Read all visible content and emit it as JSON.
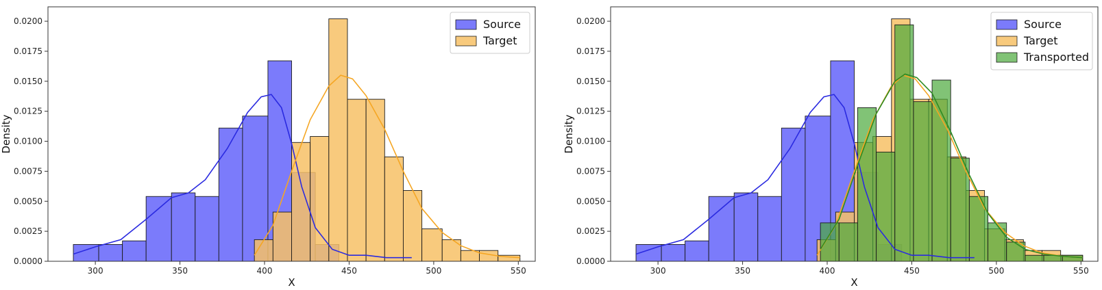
{
  "chart_data": [
    {
      "type": "histogram",
      "xlabel": "X",
      "ylabel": "Density",
      "xlim": [
        272,
        560
      ],
      "ylim": [
        0,
        0.0212
      ],
      "xticks": [
        300,
        350,
        400,
        450,
        500,
        550
      ],
      "yticks": [
        0.0,
        0.0025,
        0.005,
        0.0075,
        0.01,
        0.0125,
        0.015,
        0.0175,
        0.02
      ],
      "ytick_labels": [
        "0.0000",
        "0.0025",
        "0.0050",
        "0.0075",
        "0.0100",
        "0.0125",
        "0.0150",
        "0.0175",
        "0.0200"
      ],
      "legend": {
        "placement": "top-right",
        "entries": [
          "Source",
          "Target"
        ]
      },
      "series": [
        {
          "name": "Source",
          "color": "#7b7bfb",
          "kde_color": "#2a2ae0",
          "alpha": 1,
          "bin_edges": [
            287,
            302,
            316,
            330,
            345,
            359,
            373,
            387,
            402,
            416,
            430,
            444,
            459,
            473,
            487
          ],
          "values": [
            0.0014,
            0.0014,
            0.0017,
            0.0054,
            0.0057,
            0.0054,
            0.0111,
            0.0121,
            0.0167,
            0.0074,
            0.0014,
            0.0,
            0.0,
            0.0
          ],
          "kde": [
            [
              287,
              0.0006
            ],
            [
              300,
              0.0012
            ],
            [
              315,
              0.0018
            ],
            [
              330,
              0.0035
            ],
            [
              345,
              0.0053
            ],
            [
              355,
              0.0057
            ],
            [
              365,
              0.0068
            ],
            [
              378,
              0.0094
            ],
            [
              390,
              0.0124
            ],
            [
              398,
              0.0137
            ],
            [
              404,
              0.0139
            ],
            [
              410,
              0.0128
            ],
            [
              416,
              0.0098
            ],
            [
              422,
              0.0062
            ],
            [
              430,
              0.0028
            ],
            [
              440,
              0.001
            ],
            [
              450,
              0.0005
            ],
            [
              460,
              0.0005
            ],
            [
              472,
              0.0003
            ],
            [
              487,
              0.0003
            ]
          ]
        },
        {
          "name": "Target",
          "color": "#f7c166",
          "kde_color": "#f5a623",
          "alpha": 0.85,
          "bin_edges": [
            394,
            405,
            416,
            427,
            438,
            449,
            460,
            471,
            482,
            493,
            505,
            516,
            527,
            538,
            551
          ],
          "values": [
            0.0018,
            0.0041,
            0.0099,
            0.0104,
            0.0202,
            0.0135,
            0.0135,
            0.0087,
            0.0059,
            0.0027,
            0.0018,
            0.0009,
            0.0009,
            0.0005
          ],
          "kde": [
            [
              394,
              0.0005
            ],
            [
              405,
              0.003
            ],
            [
              416,
              0.0075
            ],
            [
              427,
              0.0118
            ],
            [
              438,
              0.0146
            ],
            [
              445,
              0.0155
            ],
            [
              452,
              0.0152
            ],
            [
              460,
              0.0138
            ],
            [
              471,
              0.011
            ],
            [
              482,
              0.0075
            ],
            [
              493,
              0.0044
            ],
            [
              505,
              0.0024
            ],
            [
              516,
              0.0013
            ],
            [
              527,
              0.0007
            ],
            [
              540,
              0.0004
            ],
            [
              551,
              0.0003
            ]
          ]
        }
      ]
    },
    {
      "type": "histogram",
      "xlabel": "X",
      "ylabel": "Density",
      "xlim": [
        272,
        560
      ],
      "ylim": [
        0,
        0.0212
      ],
      "xticks": [
        300,
        350,
        400,
        450,
        500,
        550
      ],
      "yticks": [
        0.0,
        0.0025,
        0.005,
        0.0075,
        0.01,
        0.0125,
        0.015,
        0.0175,
        0.02
      ],
      "ytick_labels": [
        "0.0000",
        "0.0025",
        "0.0050",
        "0.0075",
        "0.0100",
        "0.0125",
        "0.0150",
        "0.0175",
        "0.0200"
      ],
      "legend": {
        "placement": "top-right",
        "entries": [
          "Source",
          "Target",
          "Transported"
        ]
      },
      "series": [
        {
          "name": "Source",
          "color": "#7b7bfb",
          "kde_color": "#2a2ae0",
          "alpha": 1,
          "bin_edges": [
            287,
            302,
            316,
            330,
            345,
            359,
            373,
            387,
            402,
            416,
            430,
            444,
            459,
            473,
            487
          ],
          "values": [
            0.0014,
            0.0014,
            0.0017,
            0.0054,
            0.0057,
            0.0054,
            0.0111,
            0.0121,
            0.0167,
            0.0074,
            0.0014,
            0.0,
            0.0,
            0.0
          ],
          "kde": [
            [
              287,
              0.0006
            ],
            [
              300,
              0.0012
            ],
            [
              315,
              0.0018
            ],
            [
              330,
              0.0035
            ],
            [
              345,
              0.0053
            ],
            [
              355,
              0.0057
            ],
            [
              365,
              0.0068
            ],
            [
              378,
              0.0094
            ],
            [
              390,
              0.0124
            ],
            [
              398,
              0.0137
            ],
            [
              404,
              0.0139
            ],
            [
              410,
              0.0128
            ],
            [
              416,
              0.0098
            ],
            [
              422,
              0.0062
            ],
            [
              430,
              0.0028
            ],
            [
              440,
              0.001
            ],
            [
              450,
              0.0005
            ],
            [
              460,
              0.0005
            ],
            [
              472,
              0.0003
            ],
            [
              487,
              0.0003
            ]
          ]
        },
        {
          "name": "Target",
          "color": "#f7c166",
          "kde_color": "#f5a623",
          "alpha": 0.85,
          "bin_edges": [
            394,
            405,
            416,
            427,
            438,
            449,
            460,
            471,
            482,
            493,
            505,
            516,
            527,
            538,
            551
          ],
          "values": [
            0.0018,
            0.0041,
            0.0099,
            0.0104,
            0.0202,
            0.0135,
            0.0135,
            0.0087,
            0.0059,
            0.0027,
            0.0018,
            0.0009,
            0.0009,
            0.0005
          ],
          "kde": [
            [
              394,
              0.0005
            ],
            [
              405,
              0.003
            ],
            [
              416,
              0.0075
            ],
            [
              427,
              0.0118
            ],
            [
              438,
              0.0146
            ],
            [
              445,
              0.0155
            ],
            [
              452,
              0.0152
            ],
            [
              460,
              0.0138
            ],
            [
              471,
              0.011
            ],
            [
              482,
              0.0075
            ],
            [
              493,
              0.0044
            ],
            [
              505,
              0.0024
            ],
            [
              516,
              0.0013
            ],
            [
              527,
              0.0007
            ],
            [
              540,
              0.0004
            ],
            [
              551,
              0.0003
            ]
          ]
        },
        {
          "name": "Transported",
          "color": "#4caa3c",
          "kde_color": "#2e8b22",
          "alpha": 0.7,
          "bin_edges": [
            396,
            407,
            418,
            429,
            440,
            451,
            462,
            473,
            484,
            495,
            506,
            517,
            528,
            539,
            551
          ],
          "values": [
            0.0032,
            0.0032,
            0.0128,
            0.0091,
            0.0197,
            0.0133,
            0.0151,
            0.0086,
            0.0054,
            0.0032,
            0.0016,
            0.0005,
            0.0005,
            0.0005
          ],
          "kde": [
            [
              396,
              0.001
            ],
            [
              407,
              0.0035
            ],
            [
              418,
              0.008
            ],
            [
              429,
              0.0123
            ],
            [
              440,
              0.015
            ],
            [
              446,
              0.0156
            ],
            [
              453,
              0.0153
            ],
            [
              462,
              0.014
            ],
            [
              473,
              0.0108
            ],
            [
              484,
              0.0072
            ],
            [
              495,
              0.004
            ],
            [
              506,
              0.002
            ],
            [
              517,
              0.001
            ],
            [
              528,
              0.0006
            ],
            [
              540,
              0.0004
            ],
            [
              551,
              0.0003
            ]
          ]
        }
      ]
    }
  ]
}
